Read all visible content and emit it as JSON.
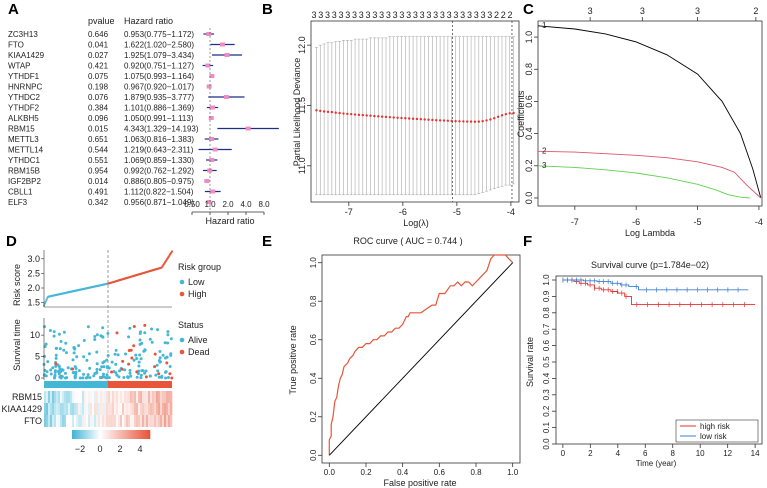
{
  "panels": {
    "A": "A",
    "B": "B",
    "C": "C",
    "D": "D",
    "E": "E",
    "F": "F"
  },
  "chart_data": [
    {
      "panel": "A",
      "type": "forest",
      "header": {
        "pvalue": "pvalue",
        "hr": "Hazard ratio"
      },
      "xlabel": "Hazard ratio",
      "xscale": "log2",
      "xticks": [
        0.5,
        1.0,
        2.0,
        4.0,
        8.0
      ],
      "xtick_labels": [
        "0.50",
        "1.0",
        "2.0",
        "4.0",
        "8.0"
      ],
      "rows": [
        {
          "gene": "ZC3H13",
          "p": "0.646",
          "hr_text": "0.953(0.775−1.172)",
          "hr": 0.953,
          "lo": 0.775,
          "hi": 1.172
        },
        {
          "gene": "FTO",
          "p": "0.041",
          "hr_text": "1.622(1.020−2.580)",
          "hr": 1.622,
          "lo": 1.02,
          "hi": 2.58
        },
        {
          "gene": "KIAA1429",
          "p": "0.027",
          "hr_text": "1.925(1.079−3.434)",
          "hr": 1.925,
          "lo": 1.079,
          "hi": 3.434
        },
        {
          "gene": "WTAP",
          "p": "0.421",
          "hr_text": "0.920(0.751−1.127)",
          "hr": 0.92,
          "lo": 0.751,
          "hi": 1.127
        },
        {
          "gene": "YTHDF1",
          "p": "0.075",
          "hr_text": "1.075(0.993−1.164)",
          "hr": 1.075,
          "lo": 0.993,
          "hi": 1.164
        },
        {
          "gene": "HNRNPC",
          "p": "0.198",
          "hr_text": "0.967(0.920−1.017)",
          "hr": 0.967,
          "lo": 0.92,
          "hi": 1.017
        },
        {
          "gene": "YTHDC2",
          "p": "0.076",
          "hr_text": "1.879(0.935−3.777)",
          "hr": 1.879,
          "lo": 0.935,
          "hi": 3.777
        },
        {
          "gene": "YTHDF2",
          "p": "0.384",
          "hr_text": "1.101(0.886−1.369)",
          "hr": 1.101,
          "lo": 0.886,
          "hi": 1.369
        },
        {
          "gene": "ALKBH5",
          "p": "0.096",
          "hr_text": "1.050(0.991−1.113)",
          "hr": 1.05,
          "lo": 0.991,
          "hi": 1.113
        },
        {
          "gene": "RBM15",
          "p": "0.015",
          "hr_text": "4.343(1.329−14.193)",
          "hr": 4.343,
          "lo": 1.329,
          "hi": 14.193
        },
        {
          "gene": "METTL3",
          "p": "0.651",
          "hr_text": "1.063(0.816−1.383)",
          "hr": 1.063,
          "lo": 0.816,
          "hi": 1.383
        },
        {
          "gene": "METTL14",
          "p": "0.544",
          "hr_text": "1.219(0.643−2.311)",
          "hr": 1.219,
          "lo": 0.643,
          "hi": 2.311
        },
        {
          "gene": "YTHDC1",
          "p": "0.551",
          "hr_text": "1.069(0.859−1.330)",
          "hr": 1.069,
          "lo": 0.859,
          "hi": 1.33
        },
        {
          "gene": "RBM15B",
          "p": "0.954",
          "hr_text": "0.992(0.762−1.292)",
          "hr": 0.992,
          "lo": 0.762,
          "hi": 1.292
        },
        {
          "gene": "IGF2BP2",
          "p": "0.014",
          "hr_text": "0.886(0.805−0.975)",
          "hr": 0.886,
          "lo": 0.805,
          "hi": 0.975
        },
        {
          "gene": "CBLL1",
          "p": "0.491",
          "hr_text": "1.112(0.822−1.504)",
          "hr": 1.112,
          "lo": 0.822,
          "hi": 1.504
        },
        {
          "gene": "ELF3",
          "p": "0.342",
          "hr_text": "0.956(0.871−1.049)",
          "hr": 0.956,
          "lo": 0.871,
          "hi": 1.049
        }
      ]
    },
    {
      "panel": "B",
      "type": "line",
      "ylabel": "Partial Likelihood Deviance",
      "xlabel": "Log(λ)",
      "xlim": [
        -7.7,
        -3.85
      ],
      "ylim": [
        10.7,
        12.2
      ],
      "xticks": [
        -7,
        -6,
        -5,
        -4
      ],
      "yticks": [
        11.0,
        11.5,
        12.0
      ],
      "ytick_labels": [
        "11.0",
        "11.5",
        "12.0"
      ],
      "top_counts": [
        "3",
        "3",
        "3",
        "3",
        "3",
        "3",
        "3",
        "3",
        "3",
        "3",
        "3",
        "3",
        "3",
        "3",
        "3",
        "3",
        "3",
        "3",
        "3",
        "3",
        "3",
        "3",
        "3",
        "3",
        "3",
        "3",
        "3",
        "2",
        "2",
        "2"
      ],
      "vlines": [
        -5.08,
        -3.98
      ],
      "cv_x_range": [
        -7.6,
        -3.95
      ],
      "cv_y": [
        11.46,
        11.455,
        11.45,
        11.447,
        11.445,
        11.44,
        11.437,
        11.433,
        11.43,
        11.428,
        11.425,
        11.422,
        11.42,
        11.417,
        11.415,
        11.412,
        11.41,
        11.407,
        11.405,
        11.403,
        11.4,
        11.398,
        11.396,
        11.394,
        11.392,
        11.39,
        11.388,
        11.386,
        11.384,
        11.382,
        11.38,
        11.378,
        11.376,
        11.375,
        11.373,
        11.372,
        11.37,
        11.369,
        11.368,
        11.367,
        11.366,
        11.365,
        11.366,
        11.37,
        11.376,
        11.384,
        11.394,
        11.406,
        11.418,
        11.428,
        11.435,
        11.438
      ],
      "cv_upper": [
        11.98,
        12.0,
        12.01,
        12.02,
        12.02,
        12.03,
        12.03,
        12.04,
        12.04,
        12.04,
        12.05,
        12.05,
        12.05,
        12.05,
        12.06,
        12.06,
        12.06,
        12.06,
        12.06,
        12.07,
        12.07,
        12.07,
        12.07,
        12.07,
        12.07,
        12.07,
        12.07,
        12.07,
        12.07,
        12.07,
        12.07,
        12.07,
        12.07,
        12.07,
        12.07,
        12.07,
        12.07,
        12.07,
        12.07,
        12.07,
        12.07,
        12.07,
        12.07,
        12.07,
        12.07,
        12.07,
        12.07,
        12.07,
        12.07,
        12.07,
        12.07,
        12.07
      ],
      "cv_lower": [
        10.76,
        10.76,
        10.76,
        10.76,
        10.76,
        10.76,
        10.76,
        10.76,
        10.76,
        10.76,
        10.76,
        10.76,
        10.76,
        10.76,
        10.76,
        10.76,
        10.76,
        10.76,
        10.76,
        10.76,
        10.76,
        10.76,
        10.76,
        10.76,
        10.76,
        10.76,
        10.76,
        10.76,
        10.76,
        10.76,
        10.76,
        10.76,
        10.76,
        10.76,
        10.76,
        10.76,
        10.76,
        10.76,
        10.76,
        10.76,
        10.76,
        10.76,
        10.77,
        10.78,
        10.79,
        10.8,
        10.81,
        10.82,
        10.83,
        10.84,
        10.84,
        10.85
      ]
    },
    {
      "panel": "C",
      "type": "line",
      "title": "",
      "xlabel": "Log Lambda",
      "ylabel": "Coefficients",
      "xlim": [
        -7.6,
        -3.95
      ],
      "ylim": [
        -0.05,
        1.1
      ],
      "xticks": [
        -7,
        -6,
        -5,
        -4
      ],
      "yticks": [
        0.0,
        0.2,
        0.4,
        0.6,
        0.8,
        1.0
      ],
      "ytick_labels": [
        "0.0",
        "0.2",
        "0.4",
        "0.6",
        "0.8",
        "1.0"
      ],
      "top_axis_ticks": [
        -6.75,
        -5.9,
        -5.0,
        -4.05
      ],
      "top_axis_labels": [
        "3",
        "3",
        "3",
        "2"
      ],
      "line_labels": [
        "1",
        "2",
        "3"
      ],
      "series": [
        {
          "name": "1",
          "color": "#000000",
          "x": [
            -7.6,
            -7.0,
            -6.5,
            -6.0,
            -5.5,
            -5.0,
            -4.6,
            -4.3,
            -4.1,
            -3.97
          ],
          "y": [
            1.07,
            1.05,
            1.02,
            0.97,
            0.89,
            0.77,
            0.6,
            0.4,
            0.18,
            0.0
          ]
        },
        {
          "name": "2",
          "color": "#df536b",
          "x": [
            -7.6,
            -7.0,
            -6.5,
            -6.0,
            -5.5,
            -5.0,
            -4.6,
            -4.4,
            -4.2,
            -3.97
          ],
          "y": [
            0.29,
            0.285,
            0.275,
            0.265,
            0.25,
            0.225,
            0.19,
            0.16,
            0.08,
            0.0
          ]
        },
        {
          "name": "3",
          "color": "#61d04f",
          "x": [
            -7.6,
            -7.0,
            -6.5,
            -6.0,
            -5.5,
            -5.0,
            -4.7,
            -4.5,
            -4.3,
            -4.15
          ],
          "y": [
            0.2,
            0.19,
            0.175,
            0.155,
            0.125,
            0.085,
            0.05,
            0.02,
            0.005,
            0.0
          ]
        }
      ]
    },
    {
      "panel": "D",
      "type": "scatter",
      "risk_ylabel": "Risk score",
      "risk_yticks": [
        1.5,
        2.0,
        2.5,
        3.0
      ],
      "risk_ytick_labels": [
        "1.5",
        "2.0",
        "2.5",
        "3.0"
      ],
      "surv_ylabel": "Survival time",
      "surv_yticks": [
        0,
        5,
        10
      ],
      "surv_ytick_labels": [
        "0",
        "5",
        "10"
      ],
      "risk_legend_title": "Risk group",
      "risk_groups": [
        {
          "label": "Low",
          "color": "#45b7d6"
        },
        {
          "label": "High",
          "color": "#e8553a"
        }
      ],
      "status_legend_title": "Status",
      "status_groups": [
        {
          "label": "Alive",
          "color": "#45b7d6"
        },
        {
          "label": "Dead",
          "color": "#e8553a"
        }
      ],
      "heatmap_genes": [
        "RBM15",
        "KIAA1429",
        "FTO"
      ],
      "colorbar_ticks": [
        -2,
        0,
        2,
        4
      ],
      "colorbar_labels": [
        "−2",
        "0",
        "2",
        "4"
      ]
    },
    {
      "panel": "E",
      "type": "line",
      "title": "ROC curve ( AUC =  0.744 )",
      "xlabel": "False positive rate",
      "ylabel": "True positive rate",
      "xlim": [
        0,
        1
      ],
      "ylim": [
        0,
        1
      ],
      "xticks": [
        0.0,
        0.2,
        0.4,
        0.6,
        0.8,
        1.0
      ],
      "yticks": [
        0.0,
        0.2,
        0.4,
        0.6,
        0.8,
        1.0
      ],
      "tick_labels": [
        "0.0",
        "0.2",
        "0.4",
        "0.6",
        "0.8",
        "1.0"
      ],
      "series": [
        {
          "name": "ROC",
          "color": "#e8553a",
          "x": [
            0.0,
            0.0,
            0.01,
            0.01,
            0.02,
            0.03,
            0.04,
            0.05,
            0.06,
            0.07,
            0.08,
            0.1,
            0.11,
            0.13,
            0.14,
            0.16,
            0.18,
            0.2,
            0.22,
            0.24,
            0.26,
            0.28,
            0.3,
            0.32,
            0.34,
            0.36,
            0.38,
            0.4,
            0.42,
            0.43,
            0.44,
            0.46,
            0.48,
            0.5,
            0.53,
            0.56,
            0.58,
            0.6,
            0.63,
            0.66,
            0.68,
            0.7,
            0.72,
            0.74,
            0.76,
            0.78,
            0.8,
            0.82,
            0.84,
            0.86,
            0.88,
            0.9,
            0.92,
            0.94,
            0.96,
            0.98,
            1.0
          ],
          "y": [
            0.0,
            0.08,
            0.1,
            0.16,
            0.2,
            0.28,
            0.3,
            0.36,
            0.4,
            0.42,
            0.46,
            0.48,
            0.5,
            0.52,
            0.54,
            0.56,
            0.56,
            0.58,
            0.58,
            0.6,
            0.6,
            0.62,
            0.62,
            0.64,
            0.64,
            0.66,
            0.66,
            0.68,
            0.72,
            0.72,
            0.74,
            0.74,
            0.74,
            0.74,
            0.76,
            0.78,
            0.78,
            0.84,
            0.84,
            0.88,
            0.88,
            0.9,
            0.88,
            0.9,
            0.9,
            0.88,
            0.9,
            0.92,
            0.94,
            0.96,
            1.02,
            1.04,
            1.04,
            1.04,
            1.04,
            1.02,
            1.0
          ]
        },
        {
          "name": "diagonal",
          "color": "#000000",
          "x": [
            0,
            1
          ],
          "y": [
            0,
            1
          ]
        }
      ]
    },
    {
      "panel": "F",
      "type": "line",
      "title": "Survival curve (p=1.784e−02)",
      "xlabel": "Time (year)",
      "ylabel": "Survival rate",
      "xlim": [
        -0.5,
        14.5
      ],
      "ylim": [
        0,
        1.0
      ],
      "xticks": [
        0,
        2,
        4,
        6,
        8,
        10,
        12,
        14
      ],
      "yticks": [
        0.0,
        0.1,
        0.2,
        0.3,
        0.4,
        0.5,
        0.6,
        0.7,
        0.8,
        0.9,
        1.0
      ],
      "ytick_labels": [
        "0.0",
        "0.1",
        "0.2",
        "0.3",
        "0.4",
        "0.5",
        "0.6",
        "0.7",
        "0.8",
        "0.9",
        "1.0"
      ],
      "legend": [
        "high risk",
        "low risk"
      ],
      "series": [
        {
          "name": "high risk",
          "color": "#e8312e",
          "x": [
            0,
            0.8,
            1.2,
            1.8,
            2.3,
            2.8,
            3.5,
            4.0,
            4.5,
            5.0,
            14.0
          ],
          "y": [
            1.0,
            0.99,
            0.98,
            0.97,
            0.95,
            0.94,
            0.93,
            0.92,
            0.9,
            0.85,
            0.85
          ]
        },
        {
          "name": "low risk",
          "color": "#3c7dd0",
          "x": [
            0,
            1.5,
            2.5,
            3.5,
            4.2,
            4.8,
            5.5,
            13.5
          ],
          "y": [
            1.0,
            0.995,
            0.99,
            0.98,
            0.97,
            0.96,
            0.94,
            0.94
          ]
        }
      ]
    }
  ]
}
